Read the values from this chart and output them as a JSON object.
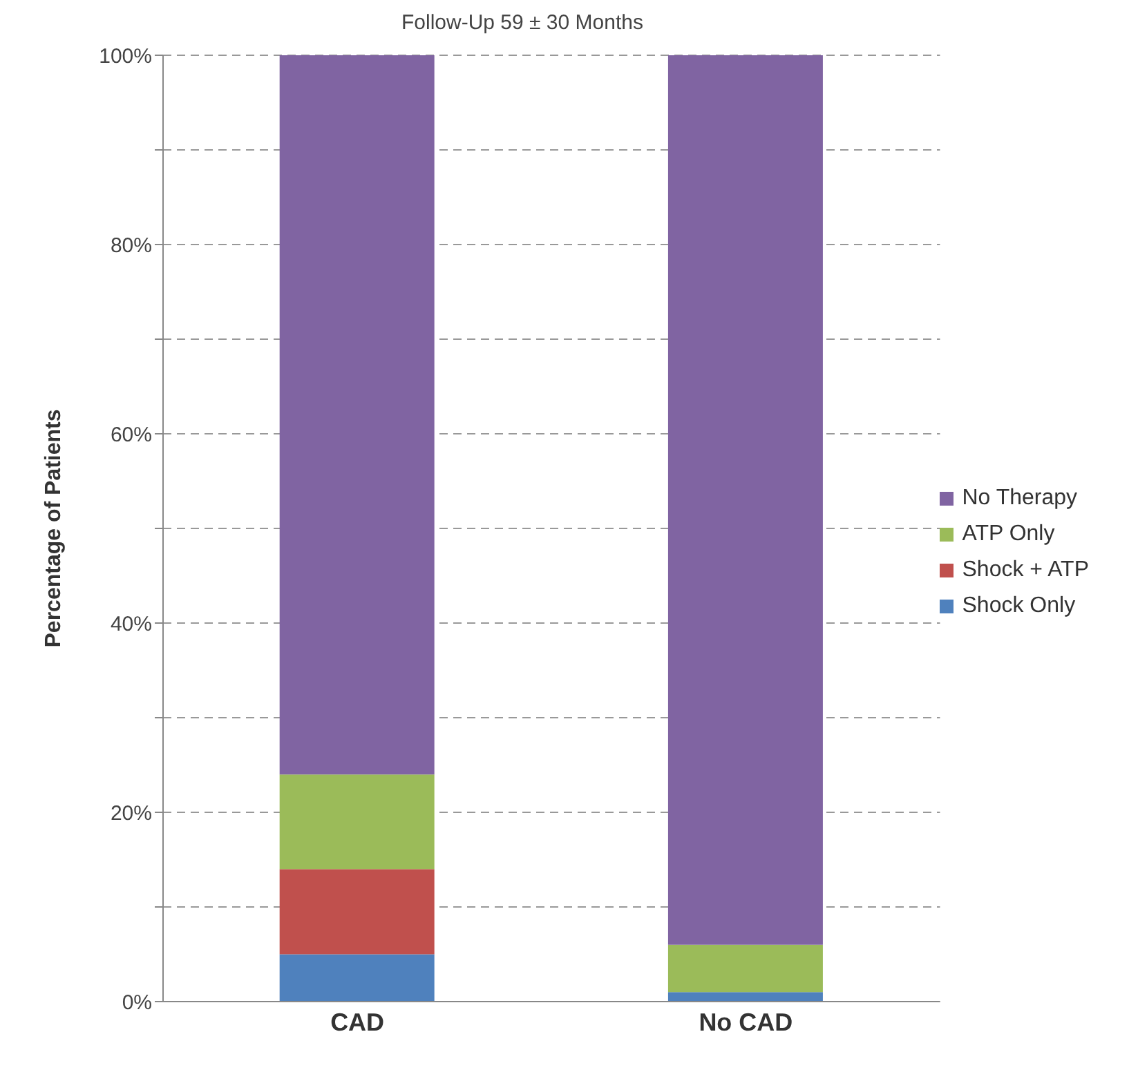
{
  "chart_data": {
    "type": "bar",
    "title": "Follow-Up 59 ± 30 Months",
    "ylabel": "Percentage of Patients",
    "categories": [
      "CAD",
      "No CAD"
    ],
    "stacked": true,
    "series": [
      {
        "name": "Shock Only",
        "color": "#4f81bd",
        "values": [
          5,
          1
        ]
      },
      {
        "name": "Shock + ATP",
        "color": "#c0504d",
        "values": [
          9,
          0
        ]
      },
      {
        "name": "ATP Only",
        "color": "#9bbb59",
        "values": [
          10,
          5
        ]
      },
      {
        "name": "No Therapy",
        "color": "#8064a2",
        "values": [
          76,
          94
        ]
      }
    ],
    "ylim": [
      0,
      100
    ],
    "yticks": [
      {
        "value": 0,
        "label": "0%"
      },
      {
        "value": 10,
        "label": null
      },
      {
        "value": 20,
        "label": "20%"
      },
      {
        "value": 30,
        "label": null
      },
      {
        "value": 40,
        "label": "40%"
      },
      {
        "value": 50,
        "label": null
      },
      {
        "value": 60,
        "label": "60%"
      },
      {
        "value": 70,
        "label": null
      },
      {
        "value": 80,
        "label": "80%"
      },
      {
        "value": 90,
        "label": null
      },
      {
        "value": 100,
        "label": "100%"
      }
    ],
    "grid": "y",
    "legend": "right"
  }
}
